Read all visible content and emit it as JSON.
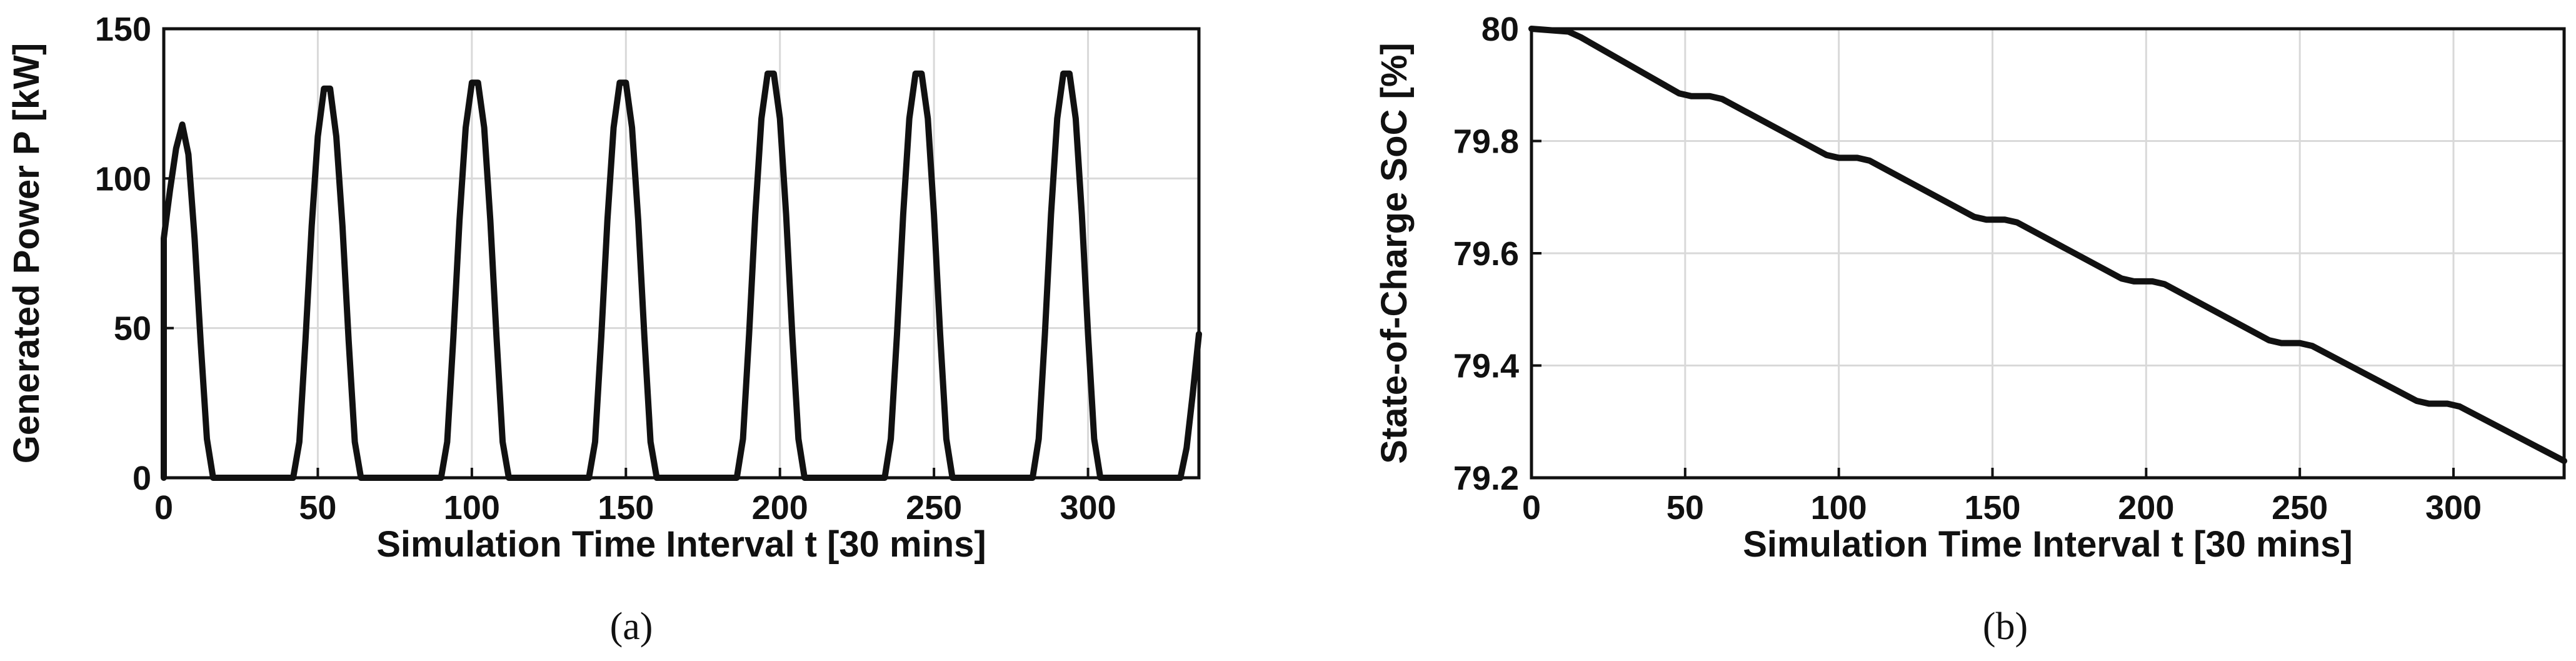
{
  "chart_data": [
    {
      "type": "line",
      "panel_label": "(a)",
      "xlabel": "Simulation Time Interval t [30 mins]",
      "ylabel": "Generated Power P [kW]",
      "xlim": [
        0,
        336
      ],
      "ylim": [
        0,
        150
      ],
      "xticks": [
        0,
        50,
        100,
        150,
        200,
        250,
        300
      ],
      "yticks": [
        0,
        50,
        100,
        150
      ],
      "grid": true,
      "line_color": "#111111",
      "series": [
        {
          "x": [
            0,
            0,
            2,
            4,
            6,
            8,
            10,
            12,
            14,
            16,
            42,
            44,
            46,
            48,
            50,
            52,
            54,
            56,
            58,
            60,
            62,
            64,
            66,
            90,
            92,
            94,
            96,
            98,
            100,
            102,
            104,
            106,
            108,
            110,
            112,
            114,
            138,
            140,
            142,
            144,
            146,
            148,
            150,
            152,
            154,
            156,
            158,
            160,
            162,
            186,
            188,
            190,
            192,
            194,
            196,
            198,
            200,
            202,
            204,
            206,
            208,
            210,
            234,
            236,
            238,
            240,
            242,
            244,
            246,
            248,
            250,
            252,
            254,
            256,
            258,
            282,
            284,
            286,
            288,
            290,
            292,
            294,
            296,
            298,
            300,
            302,
            304,
            306,
            330,
            332,
            334,
            336
          ],
          "y": [
            0,
            80,
            96,
            110,
            118,
            108,
            80,
            45,
            13,
            0,
            0,
            12,
            46,
            84,
            114,
            130,
            130,
            114,
            84,
            46,
            12,
            0,
            0,
            0,
            12,
            47,
            86,
            117,
            132,
            132,
            117,
            86,
            47,
            12,
            0,
            0,
            0,
            12,
            47,
            86,
            117,
            132,
            132,
            117,
            86,
            47,
            12,
            0,
            0,
            0,
            13,
            48,
            88,
            120,
            135,
            135,
            120,
            88,
            48,
            13,
            0,
            0,
            0,
            13,
            48,
            88,
            120,
            135,
            135,
            120,
            88,
            48,
            13,
            0,
            0,
            0,
            13,
            48,
            88,
            120,
            135,
            135,
            120,
            88,
            48,
            13,
            0,
            0,
            0,
            10,
            28,
            48
          ]
        }
      ]
    },
    {
      "type": "line",
      "panel_label": "(b)",
      "xlabel": "Simulation Time Interval t [30 mins]",
      "ylabel": "State-of-Charge SoC [%]",
      "xlim": [
        0,
        336
      ],
      "ylim": [
        79.2,
        80
      ],
      "xticks": [
        0,
        50,
        100,
        150,
        200,
        250,
        300
      ],
      "yticks": [
        79.2,
        79.4,
        79.6,
        79.8,
        80
      ],
      "grid": true,
      "line_color": "#111111",
      "series": [
        {
          "x": [
            0,
            12,
            16,
            48,
            52,
            58,
            62,
            96,
            100,
            106,
            110,
            144,
            148,
            154,
            158,
            192,
            196,
            202,
            206,
            240,
            244,
            250,
            254,
            288,
            292,
            298,
            302,
            336
          ],
          "y": [
            80.0,
            79.995,
            79.985,
            79.885,
            79.88,
            79.88,
            79.875,
            79.775,
            79.77,
            79.77,
            79.765,
            79.665,
            79.66,
            79.66,
            79.655,
            79.555,
            79.55,
            79.55,
            79.545,
            79.445,
            79.44,
            79.44,
            79.435,
            79.337,
            79.332,
            79.332,
            79.327,
            79.23
          ]
        }
      ]
    }
  ]
}
